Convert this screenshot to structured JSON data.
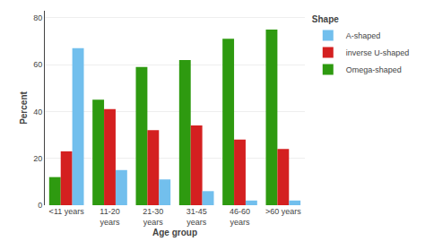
{
  "chart_data": {
    "type": "bar",
    "categories": [
      "<11 years",
      "11-20\nyears",
      "21-30\nyears",
      "31-45\nyears",
      "46-60\nyears",
      ">60 years"
    ],
    "series": [
      {
        "name": "Omega-shaped",
        "color": "#2e9a10",
        "values": [
          12,
          45,
          59,
          62,
          71,
          75
        ]
      },
      {
        "name": "inverse U-shaped",
        "color": "#d42020",
        "values": [
          23,
          41,
          32,
          34,
          28,
          24
        ]
      },
      {
        "name": "A-shaped",
        "color": "#72bfed",
        "values": [
          67,
          15,
          11,
          6,
          2,
          2
        ]
      }
    ],
    "xlabel": "Age group",
    "ylabel": "Percent",
    "legend_title": "Shape",
    "legend": "upper right",
    "ylim": [
      0,
      83
    ],
    "yticks": [
      0,
      20,
      40,
      60,
      80
    ],
    "grid": true
  }
}
